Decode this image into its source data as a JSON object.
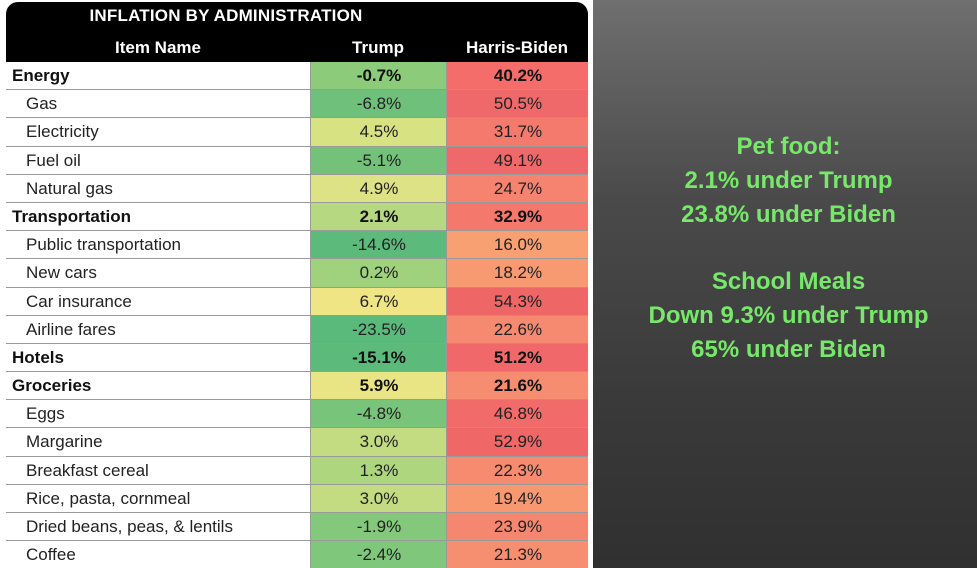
{
  "table": {
    "title": "INFLATION BY ADMINISTRATION",
    "headers": {
      "item": "Item Name",
      "trump": "Trump",
      "biden": "Harris-Biden"
    },
    "rows": [
      {
        "name": "Energy",
        "trump": "-0.7%",
        "biden": "40.2%",
        "bold": true,
        "trump_color": "#8ccb7a",
        "biden_color": "#f46d6a"
      },
      {
        "name": "Gas",
        "trump": "-6.8%",
        "biden": "50.5%",
        "bold": false,
        "trump_color": "#6fc07a",
        "biden_color": "#f0696a"
      },
      {
        "name": "Electricity",
        "trump": "4.5%",
        "biden": "31.7%",
        "bold": false,
        "trump_color": "#d7e283",
        "biden_color": "#f47a6d"
      },
      {
        "name": "Fuel oil",
        "trump": "-5.1%",
        "biden": "49.1%",
        "bold": false,
        "trump_color": "#74c27a",
        "biden_color": "#f0696a"
      },
      {
        "name": "Natural gas",
        "trump": "4.9%",
        "biden": "24.7%",
        "bold": false,
        "trump_color": "#dde384",
        "biden_color": "#f5836f"
      },
      {
        "name": "Transportation",
        "trump": "2.1%",
        "biden": "32.9%",
        "bold": true,
        "trump_color": "#b5d880",
        "biden_color": "#f4786c"
      },
      {
        "name": "Public transportation",
        "trump": "-14.6%",
        "biden": "16.0%",
        "bold": false,
        "trump_color": "#5cbb7b",
        "biden_color": "#f8a072"
      },
      {
        "name": "New cars",
        "trump": "0.2%",
        "biden": "18.2%",
        "bold": false,
        "trump_color": "#a0d17d",
        "biden_color": "#f79a71"
      },
      {
        "name": "Car insurance",
        "trump": "6.7%",
        "biden": "54.3%",
        "bold": false,
        "trump_color": "#f0e584",
        "biden_color": "#ef6667"
      },
      {
        "name": "Airline fares",
        "trump": "-23.5%",
        "biden": "22.6%",
        "bold": false,
        "trump_color": "#5aba7b",
        "biden_color": "#f68a70"
      },
      {
        "name": "Hotels",
        "trump": "-15.1%",
        "biden": "51.2%",
        "bold": true,
        "trump_color": "#5cbb7b",
        "biden_color": "#f0686a"
      },
      {
        "name": "Groceries",
        "trump": "5.9%",
        "biden": "21.6%",
        "bold": true,
        "trump_color": "#e9e584",
        "biden_color": "#f68d70"
      },
      {
        "name": "Eggs",
        "trump": "-4.8%",
        "biden": "46.8%",
        "bold": false,
        "trump_color": "#78c47a",
        "biden_color": "#f16b6a"
      },
      {
        "name": "Margarine",
        "trump": "3.0%",
        "biden": "52.9%",
        "bold": false,
        "trump_color": "#c3dc81",
        "biden_color": "#ef6767"
      },
      {
        "name": "Breakfast cereal",
        "trump": "1.3%",
        "biden": "22.3%",
        "bold": false,
        "trump_color": "#aed67f",
        "biden_color": "#f68b70"
      },
      {
        "name": "Rice, pasta, cornmeal",
        "trump": "3.0%",
        "biden": "19.4%",
        "bold": false,
        "trump_color": "#c3dc81",
        "biden_color": "#f79871"
      },
      {
        "name": "Dried beans, peas, & lentils",
        "trump": "-1.9%",
        "biden": "23.9%",
        "bold": false,
        "trump_color": "#84c97b",
        "biden_color": "#f5866f"
      },
      {
        "name": "Coffee",
        "trump": "-2.4%",
        "biden": "21.3%",
        "bold": false,
        "trump_color": "#7fc77b",
        "biden_color": "#f68e70"
      }
    ]
  },
  "side": {
    "block1": [
      "Pet food:",
      "2.1% under Trump",
      "23.8% under Biden"
    ],
    "block2": [
      "School Meals",
      "Down 9.3% under Trump",
      "65% under Biden"
    ]
  }
}
